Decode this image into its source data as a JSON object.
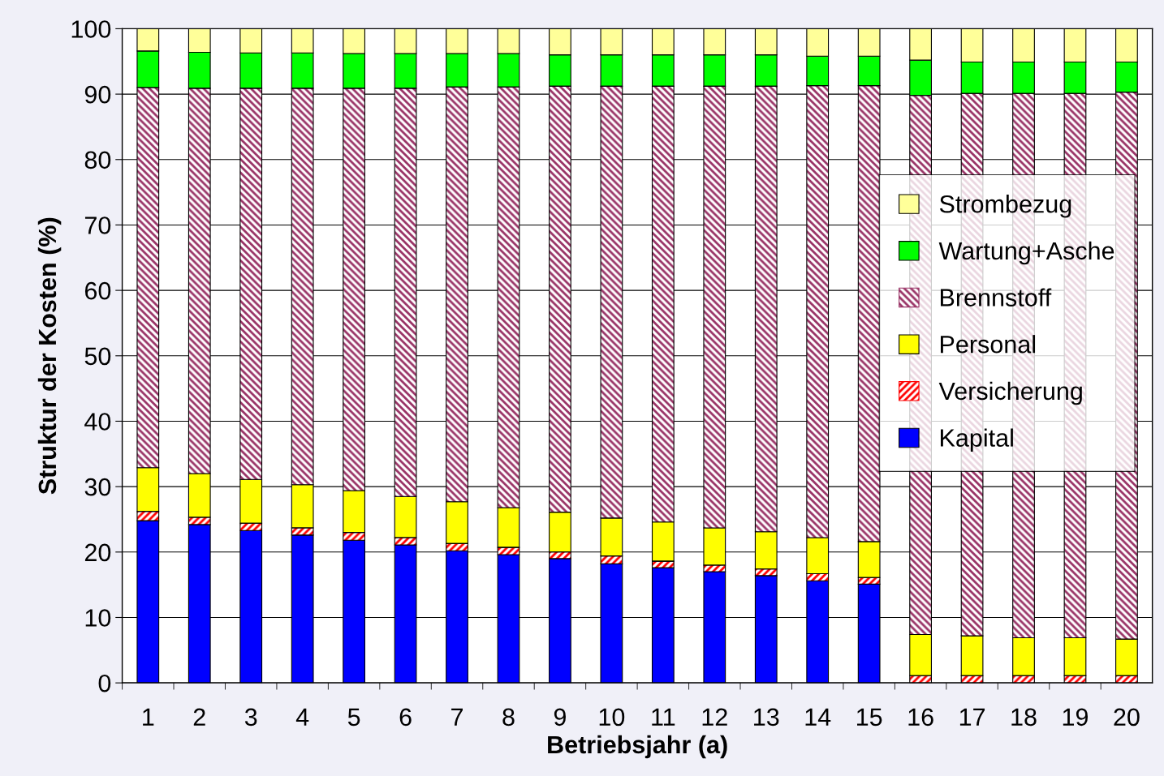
{
  "chart_data": {
    "type": "bar",
    "stacked": true,
    "xlabel": "Betriebsjahr (a)",
    "ylabel": "Struktur der Kosten (%)",
    "categories": [
      "1",
      "2",
      "3",
      "4",
      "5",
      "6",
      "7",
      "8",
      "9",
      "10",
      "11",
      "12",
      "13",
      "14",
      "15",
      "16",
      "17",
      "18",
      "19",
      "20"
    ],
    "ylim": [
      0,
      100
    ],
    "yticks": [
      0,
      10,
      20,
      30,
      40,
      50,
      60,
      70,
      80,
      90,
      100
    ],
    "grid": "y",
    "legend": "right",
    "series": [
      {
        "name": "Kapital",
        "color": "#0000ff",
        "values": [
          24.8,
          24.2,
          23.3,
          22.6,
          21.8,
          21.1,
          20.2,
          19.6,
          19.0,
          18.2,
          17.6,
          17.0,
          16.4,
          15.6,
          15.1,
          0,
          0,
          0,
          0,
          0
        ]
      },
      {
        "name": "Versicherung",
        "color": "#ff0000",
        "values": [
          1.4,
          1.1,
          1.1,
          1.1,
          1.2,
          1.1,
          1.1,
          1.1,
          1.0,
          1.2,
          1.0,
          1.0,
          1.0,
          1.1,
          1.0,
          1.1,
          1.1,
          1.1,
          1.1,
          1.1
        ]
      },
      {
        "name": "Personal",
        "color": "#ffff00",
        "values": [
          6.7,
          6.7,
          6.7,
          6.6,
          6.4,
          6.3,
          6.4,
          6.1,
          6.1,
          5.8,
          6.0,
          5.7,
          5.7,
          5.5,
          5.5,
          6.3,
          6.1,
          5.8,
          5.8,
          5.6
        ]
      },
      {
        "name": "Brennstoff",
        "color": "#993366",
        "values": [
          58.1,
          58.9,
          59.8,
          60.6,
          61.5,
          62.4,
          63.4,
          64.3,
          65.1,
          66.0,
          66.6,
          67.5,
          68.1,
          69.1,
          69.7,
          82.4,
          82.9,
          83.2,
          83.2,
          83.6
        ]
      },
      {
        "name": "Wartung+Asche",
        "color": "#00ff00",
        "values": [
          5.6,
          5.5,
          5.4,
          5.4,
          5.3,
          5.3,
          5.1,
          5.1,
          4.8,
          4.8,
          4.8,
          4.8,
          4.8,
          4.5,
          4.5,
          5.4,
          4.8,
          4.8,
          4.8,
          4.6
        ]
      },
      {
        "name": "Strombezug",
        "color": "#ffff99",
        "values": [
          3.5,
          3.6,
          3.7,
          3.7,
          3.8,
          3.8,
          3.8,
          3.8,
          4.0,
          4.0,
          4.0,
          4.0,
          4.0,
          4.2,
          4.2,
          4.8,
          5.1,
          5.1,
          5.1,
          5.1
        ]
      }
    ]
  }
}
